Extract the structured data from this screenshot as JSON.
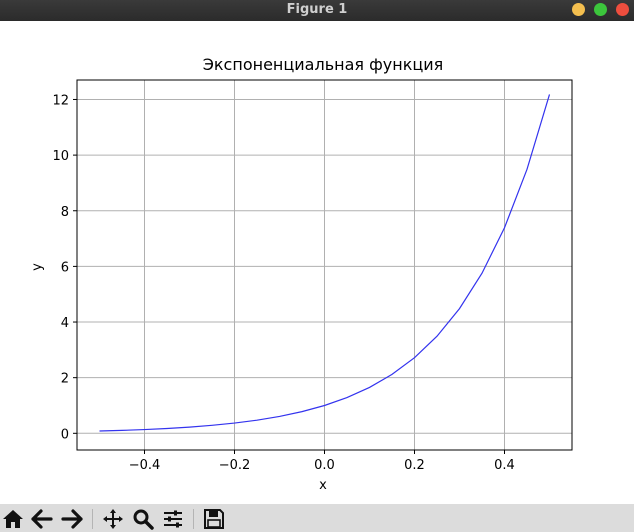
{
  "window": {
    "title": "Figure 1"
  },
  "chart_data": {
    "type": "line",
    "title": "Экспоненциальная функция",
    "xlabel": "x",
    "ylabel": "y",
    "xlim": [
      -0.55,
      0.55
    ],
    "ylim": [
      -0.6,
      12.7
    ],
    "xticks": [
      -0.4,
      -0.2,
      0.0,
      0.2,
      0.4
    ],
    "xtick_labels": [
      "−0.4",
      "−0.2",
      "0.0",
      "0.2",
      "0.4"
    ],
    "yticks": [
      0,
      2,
      4,
      6,
      8,
      10,
      12
    ],
    "ytick_labels": [
      "0",
      "2",
      "4",
      "6",
      "8",
      "10",
      "12"
    ],
    "grid": true,
    "series": [
      {
        "color": "#3333ee",
        "function": "exp(5x)",
        "x": [
          -0.5,
          -0.45,
          -0.4,
          -0.35,
          -0.3,
          -0.25,
          -0.2,
          -0.15,
          -0.1,
          -0.05,
          0.0,
          0.05,
          0.1,
          0.15,
          0.2,
          0.25,
          0.3,
          0.35,
          0.4,
          0.45,
          0.5
        ],
        "y": [
          0.082,
          0.105,
          0.135,
          0.174,
          0.223,
          0.287,
          0.368,
          0.472,
          0.607,
          0.779,
          1.0,
          1.284,
          1.649,
          2.117,
          2.718,
          3.49,
          4.482,
          5.755,
          7.389,
          9.488,
          12.182
        ]
      }
    ]
  },
  "toolbar": {
    "buttons": [
      "home-icon",
      "back-icon",
      "forward-icon",
      "pan-icon",
      "zoom-icon",
      "configure-subplots-icon",
      "save-icon"
    ]
  }
}
